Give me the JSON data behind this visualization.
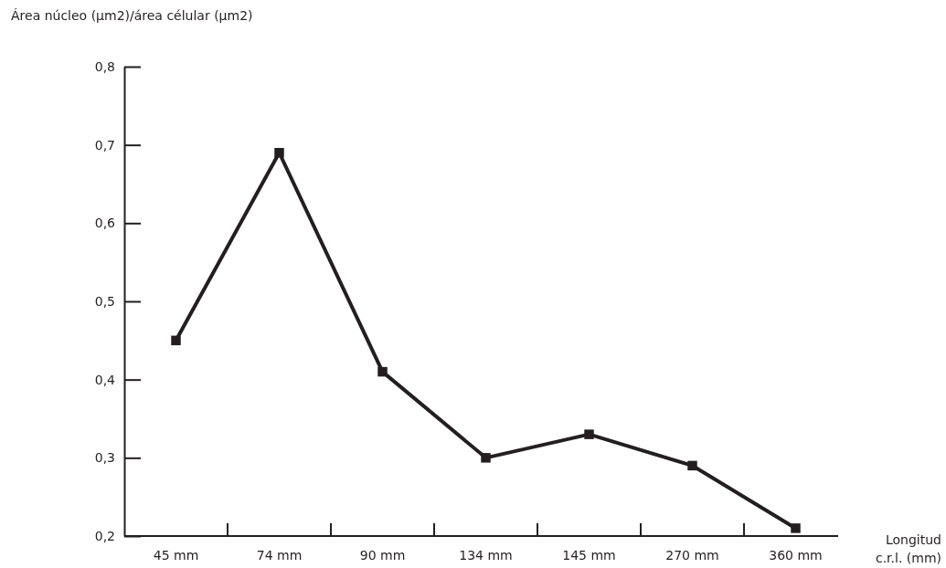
{
  "chart_data": {
    "type": "line",
    "ylabel": "Área núcleo (µm2)/área célular (µm2)",
    "xlabel": "Longitud c.r.l. (mm)",
    "categories": [
      "45 mm",
      "74 mm",
      "90 mm",
      "134 mm",
      "145 mm",
      "270 mm",
      "360 mm"
    ],
    "series": [
      {
        "color": "#231f20",
        "values": [
          0.45,
          0.69,
          0.41,
          0.3,
          0.33,
          0.29,
          0.21
        ]
      }
    ],
    "ylim": [
      0.2,
      0.8
    ],
    "yticks": [
      {
        "value": 0.2,
        "label": "0,2"
      },
      {
        "value": 0.3,
        "label": "0,3"
      },
      {
        "value": 0.4,
        "label": "0,4"
      },
      {
        "value": 0.5,
        "label": "0,5"
      },
      {
        "value": 0.6,
        "label": "0,6"
      },
      {
        "value": 0.7,
        "label": "0,7"
      },
      {
        "value": 0.8,
        "label": "0,8"
      }
    ],
    "marker": "square",
    "line_style": "solid",
    "grid": false
  }
}
